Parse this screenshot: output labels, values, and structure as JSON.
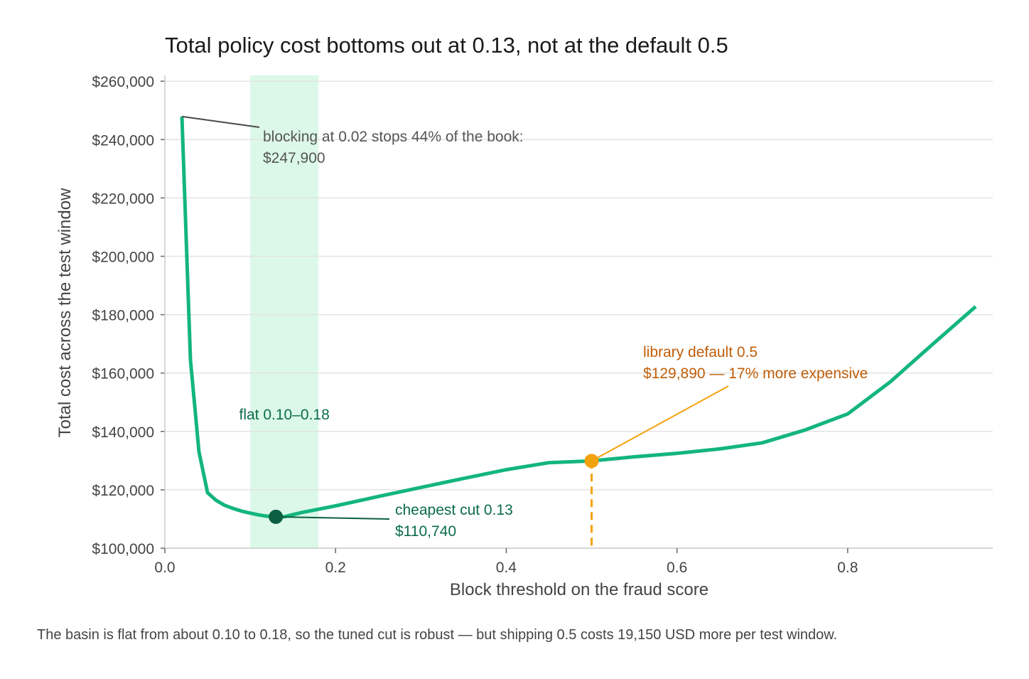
{
  "chart_data": {
    "type": "line",
    "title": "Total policy cost bottoms out at 0.13, not at the default 0.5",
    "xlabel": "Block threshold on the fraud score",
    "ylabel": "Total cost across the test window",
    "xlim": [
      0.0,
      0.97
    ],
    "ylim": [
      100000,
      262000
    ],
    "x_ticks": [
      0.0,
      0.2,
      0.4,
      0.6,
      0.8
    ],
    "x_tick_labels": [
      "0.0",
      "0.2",
      "0.4",
      "0.6",
      "0.8"
    ],
    "y_ticks": [
      100000,
      120000,
      140000,
      160000,
      180000,
      200000,
      220000,
      240000,
      260000
    ],
    "y_tick_labels": [
      "$100,000",
      "$120,000",
      "$140,000",
      "$160,000",
      "$180,000",
      "$200,000",
      "$220,000",
      "$240,000",
      "$260,000"
    ],
    "grid": "horizontal",
    "series": [
      {
        "color": "#13b57f",
        "x": [
          0.02,
          0.03,
          0.04,
          0.05,
          0.06,
          0.07,
          0.08,
          0.09,
          0.1,
          0.11,
          0.12,
          0.13,
          0.14,
          0.16,
          0.2,
          0.25,
          0.3,
          0.35,
          0.4,
          0.45,
          0.5,
          0.55,
          0.6,
          0.65,
          0.7,
          0.75,
          0.8,
          0.85,
          0.9,
          0.95
        ],
        "y": [
          247900,
          164500,
          133000,
          119000,
          116400,
          114700,
          113600,
          112700,
          112000,
          111400,
          110950,
          110740,
          110800,
          112200,
          114500,
          117700,
          120800,
          123900,
          126900,
          129300,
          129890,
          131300,
          132500,
          134000,
          136100,
          140500,
          146000,
          157000,
          170000,
          182800
        ]
      }
    ],
    "shaded_band": {
      "x_range": [
        0.1,
        0.18
      ],
      "color": "#dcf8e9",
      "label": "flat 0.10–0.18"
    },
    "annotations": [
      {
        "point": [
          0.02,
          247900
        ],
        "lines": [
          "blocking at 0.02 stops 44% of the book:",
          "$247,900"
        ],
        "color": "#555555"
      },
      {
        "point": [
          0.13,
          110740
        ],
        "marker_color": "#0b5e42",
        "lines": [
          "cheapest cut 0.13",
          "$110,740"
        ],
        "color": "#0b6b4b"
      },
      {
        "point": [
          0.5,
          129890
        ],
        "marker_color": "#f2a20c",
        "lines": [
          "library default 0.5",
          "$129,890 — 17% more expensive"
        ],
        "color": "#c05d08",
        "dashed_drop_color": "#f2a20c"
      }
    ]
  },
  "footnote": "The basin is flat from about 0.10 to 0.18, so the tuned cut is robust — but shipping 0.5 costs 19,150 USD more per test window."
}
